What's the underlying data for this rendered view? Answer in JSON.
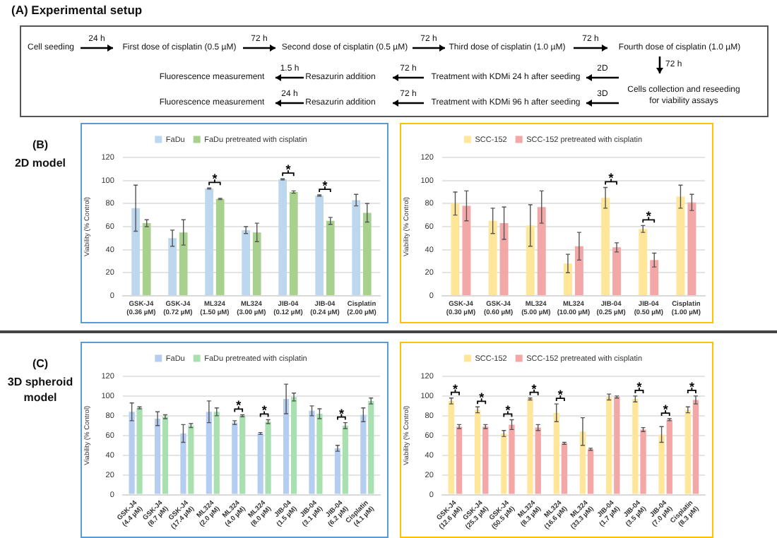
{
  "chart_data": [
    {
      "type": "other",
      "title": "(A) Experimental setup",
      "annotations": [
        "Cell seeding",
        "24 h",
        "First dose of cisplatin (0.5 µM)",
        "72 h",
        "Second dose of cisplatin (0.5 µM)",
        "72 h",
        "Third dose of cisplatin (1.0 µM)",
        "72 h",
        "Fourth dose of cisplatin (1.0 µM)",
        "72 h",
        "Cells collection and reseeding for viability assays",
        "2D",
        "Treatment with KDMi 24 h after seeding",
        "72 h",
        "Resazurin addition",
        "1.5 h",
        "Fluorescence measurement",
        "3D",
        "Treatment with KDMi 96 h after seeding",
        "72 h",
        "Resazurin addition",
        "24 h",
        "Fluorescence measurement"
      ]
    },
    {
      "type": "bar",
      "ylabel": "Viability (% Control)",
      "categories": [
        "GSK-J4 (0.36 µM)",
        "GSK-J4 (0.72 µM)",
        "ML324 (1.50 µM)",
        "ML324 (3.00 µM)",
        "JIB-04 (0.12 µM)",
        "JIB-04 (0.24 µM)",
        "Cisplatin (2.00 µM)"
      ],
      "ylim": [
        0,
        120
      ],
      "yticks": [
        0,
        20,
        40,
        60,
        80,
        100,
        120
      ],
      "grid": "y",
      "legend": "top",
      "series": [
        {
          "name": "FaDu",
          "color": "#bdd7ee",
          "values": [
            76,
            50,
            93,
            57,
            101,
            87,
            83
          ],
          "errors": [
            20,
            7,
            0.5,
            3,
            0.5,
            0.5,
            5
          ]
        },
        {
          "name": "FaDu pretreated with cisplatin",
          "color": "#a9d18e",
          "values": [
            63,
            55,
            84,
            55,
            90,
            65,
            72
          ],
          "errors": [
            3,
            11,
            0.5,
            8,
            1,
            3,
            8
          ]
        }
      ],
      "annotations": [
        "(B)",
        "2D model",
        "*",
        "*",
        "*"
      ]
    },
    {
      "type": "bar",
      "ylabel": "Viability (% Control)",
      "categories": [
        "GSK-J4 (0.30 µM)",
        "GSK-J4 (0.60 µM)",
        "ML324 (5.00 µM)",
        "ML324 (10.00 µM)",
        "JIB-04 (0.25 µM)",
        "JIB-04 (0.50 µM)",
        "Cisplatin (1.00 µM)"
      ],
      "ylim": [
        0,
        120
      ],
      "yticks": [
        0,
        20,
        40,
        60,
        80,
        100,
        120
      ],
      "grid": "y",
      "legend": "top",
      "series": [
        {
          "name": "SCC-152",
          "color": "#ffe699",
          "values": [
            80,
            65,
            61,
            28,
            85,
            58,
            86
          ],
          "errors": [
            10,
            11,
            18,
            8,
            9,
            3,
            10
          ]
        },
        {
          "name": "SCC-152 pretreated with cisplatin",
          "color": "#f4a7a7",
          "values": [
            78,
            63,
            77,
            43,
            42,
            31,
            81
          ],
          "errors": [
            13,
            14,
            14,
            12,
            4,
            6,
            7
          ]
        }
      ],
      "annotations": [
        "*",
        "*"
      ]
    },
    {
      "type": "bar",
      "ylabel": "Viability (% Control)",
      "categories": [
        "GSK-J4 (4.4 µM)",
        "GSK-J4 (8.7 µM)",
        "GSK-J4 (17.4 µM)",
        "ML324 (2.0 µM)",
        "ML324 (4.0 µM)",
        "ML324 (8.0 µM)",
        "JIB-04 (1.5 µM)",
        "JIB-04 (3.1 µM)",
        "JIB-04 (6.2 µM)",
        "Cisplatin (4.1 µM)"
      ],
      "ylim": [
        0,
        120
      ],
      "yticks": [
        0,
        20,
        40,
        60,
        80,
        100,
        120
      ],
      "grid": "y",
      "legend": "top",
      "series": [
        {
          "name": "FaDu",
          "color": "#b4cdf0",
          "values": [
            84,
            77,
            62,
            84,
            73,
            62,
            97,
            85,
            47,
            81
          ],
          "errors": [
            9,
            7,
            9,
            11,
            2,
            1,
            15,
            5,
            3,
            7
          ]
        },
        {
          "name": "FaDu pretreated with cisplatin",
          "color": "#a8e0b0",
          "values": [
            88,
            79,
            70,
            84,
            80,
            74,
            99,
            82,
            70,
            95
          ],
          "errors": [
            1,
            2,
            2,
            4,
            1,
            2,
            4,
            5,
            3,
            3
          ]
        }
      ],
      "annotations": [
        "(C)",
        "3D spheroid model",
        "*",
        "*",
        "*"
      ]
    },
    {
      "type": "bar",
      "ylabel": "Viability (% Control)",
      "categories": [
        "GSK-J4 (12.6 µM)",
        "GSK-J4 (25.3 µM)",
        "GSK-J4 (50.5 µM)",
        "ML324 (8.3 µM)",
        "ML324 (16.6 µM)",
        "ML324 (33.3 µM)",
        "JIB-04 (1.7 µM)",
        "JIB-04 (3.5 µM)",
        "JIB-04 (7.0 µM)",
        "Cisplatin (8.3 µM)"
      ],
      "ylim": [
        0,
        120
      ],
      "yticks": [
        0,
        20,
        40,
        60,
        80,
        100,
        120
      ],
      "grid": "y",
      "legend": "top",
      "series": [
        {
          "name": "SCC-152",
          "color": "#ffe699",
          "values": [
            95,
            86,
            62,
            97,
            83,
            64,
            99,
            97,
            61,
            86
          ],
          "errors": [
            3,
            3,
            3,
            1,
            9,
            14,
            3,
            3,
            8,
            3
          ]
        },
        {
          "name": "SCC-152 pretreated with cisplatin",
          "color": "#f4a7a7",
          "values": [
            69,
            69,
            71,
            68,
            52,
            46,
            99,
            66,
            76,
            96
          ],
          "errors": [
            2,
            2,
            5,
            3,
            1,
            1,
            1,
            2,
            1,
            4
          ]
        }
      ],
      "annotations": [
        "*",
        "*",
        "*",
        "*",
        "*",
        "*",
        "*",
        "*"
      ]
    }
  ]
}
